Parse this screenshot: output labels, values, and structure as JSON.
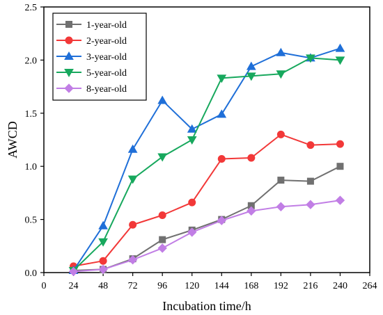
{
  "chart_data": {
    "type": "line",
    "title": "",
    "xlabel": "Incubation time/h",
    "ylabel": "AWCD",
    "xlim": [
      0,
      264
    ],
    "ylim": [
      0.0,
      2.5
    ],
    "xticks": [
      0,
      24,
      48,
      72,
      96,
      120,
      144,
      168,
      192,
      216,
      240,
      264
    ],
    "yticks": [
      0.0,
      0.5,
      1.0,
      1.5,
      2.0,
      2.5
    ],
    "ytick_labels": [
      "0.0",
      "0.5",
      "1.0",
      "1.5",
      "2.0",
      "2.5"
    ],
    "grid": false,
    "legend_position": "top-left",
    "x": [
      24,
      48,
      72,
      96,
      120,
      144,
      168,
      192,
      216,
      240
    ],
    "series": [
      {
        "name": "1-year-old",
        "color": "#707070",
        "marker": "square",
        "values": [
          0.02,
          0.03,
          0.13,
          0.31,
          0.4,
          0.5,
          0.63,
          0.87,
          0.86,
          1.0
        ]
      },
      {
        "name": "2-year-old",
        "color": "#f23838",
        "marker": "circle",
        "values": [
          0.06,
          0.11,
          0.45,
          0.54,
          0.66,
          1.07,
          1.08,
          1.3,
          1.2,
          1.21
        ]
      },
      {
        "name": "3-year-old",
        "color": "#1f6fd8",
        "marker": "triangle-up",
        "values": [
          0.02,
          0.44,
          1.16,
          1.62,
          1.35,
          1.49,
          1.94,
          2.07,
          2.02,
          2.11
        ]
      },
      {
        "name": "5-year-old",
        "color": "#17a85d",
        "marker": "triangle-down",
        "values": [
          0.02,
          0.29,
          0.88,
          1.09,
          1.25,
          1.83,
          1.85,
          1.87,
          2.02,
          2.0
        ]
      },
      {
        "name": "8-year-old",
        "color": "#c17ee5",
        "marker": "diamond",
        "values": [
          0.01,
          0.03,
          0.12,
          0.23,
          0.38,
          0.49,
          0.58,
          0.62,
          0.64,
          0.68
        ]
      }
    ]
  }
}
